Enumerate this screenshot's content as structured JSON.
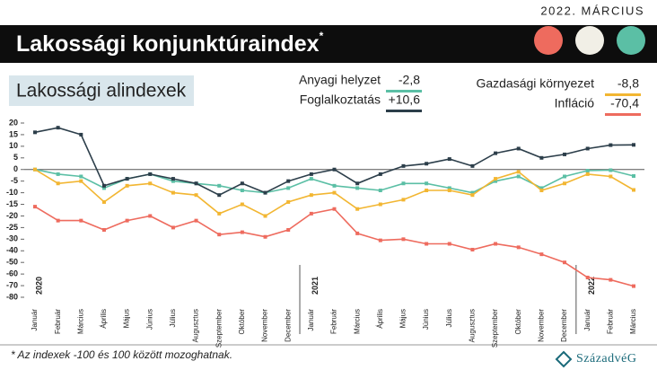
{
  "header": {
    "date": "2022. MÁRCIUS",
    "title": "Lakossági konjunktúraindex",
    "title_mark": "*"
  },
  "chart_data": {
    "type": "line",
    "subtitle": "Lakossági alindexek",
    "categories": [
      "Január",
      "Február",
      "Március",
      "Április",
      "Május",
      "Június",
      "Július",
      "Augusztus",
      "Szeptember",
      "Október",
      "November",
      "December",
      "Január",
      "Február",
      "Március",
      "Április",
      "Május",
      "Június",
      "Július",
      "Augusztus",
      "Szeptember",
      "Október",
      "November",
      "December",
      "Január",
      "Február",
      "Március"
    ],
    "years": [
      "2020",
      "2021",
      "2022"
    ],
    "ylim": [
      -80,
      20
    ],
    "yticks": [
      20,
      15,
      10,
      5,
      0,
      -5,
      -10,
      -15,
      -20,
      -25,
      -30,
      -40,
      -50,
      -60,
      -70,
      -80
    ],
    "series": [
      {
        "name": "Anyagi helyzet",
        "color": "#5bbfa5",
        "values": [
          0,
          -2,
          -3,
          -8,
          -4,
          -2,
          -5,
          -6,
          -7,
          -9,
          -10,
          -8,
          -4,
          -7,
          -8,
          -9,
          -6,
          -6,
          -8,
          -10,
          -5,
          -3,
          -8,
          -3,
          -0.5,
          -0.3,
          -2.8
        ],
        "value_labels": [
          null,
          null,
          null,
          null,
          null,
          null,
          null,
          null,
          null,
          null,
          null,
          null,
          null,
          null,
          null,
          null,
          null,
          null,
          null,
          null,
          null,
          null,
          null,
          null,
          null,
          null,
          "-2,8"
        ]
      },
      {
        "name": "Foglalkoztatás",
        "color": "#2c3e4a",
        "values": [
          16,
          18,
          15,
          -7,
          -4,
          -2,
          -4,
          -6,
          -11,
          -6,
          -10,
          -5,
          -2,
          0,
          -6,
          -2,
          1.5,
          2.5,
          4.5,
          1.5,
          7,
          9,
          5,
          6.5,
          9,
          10.5,
          10.6
        ],
        "value_labels": [
          null,
          null,
          null,
          null,
          null,
          null,
          null,
          null,
          null,
          null,
          null,
          null,
          null,
          null,
          null,
          null,
          null,
          null,
          null,
          null,
          null,
          null,
          null,
          null,
          null,
          null,
          "+10,6"
        ]
      },
      {
        "name": "Gazdasági környezet",
        "color": "#f2b632",
        "values": [
          0,
          -6,
          -5,
          -14,
          -7,
          -6,
          -10,
          -11,
          -19,
          -15,
          -20,
          -14,
          -11,
          -10,
          -17,
          -15,
          -13,
          -9,
          -9,
          -11,
          -4,
          -1,
          -9,
          -6,
          -2,
          -3,
          -8.8
        ],
        "value_labels": [
          null,
          null,
          null,
          null,
          null,
          null,
          null,
          null,
          null,
          null,
          null,
          null,
          null,
          null,
          null,
          null,
          null,
          null,
          null,
          null,
          null,
          null,
          null,
          null,
          null,
          null,
          "-8,8"
        ]
      },
      {
        "name": "Infláció",
        "color": "#ee6b5e",
        "values": [
          -16,
          -22,
          -22,
          -26,
          -22,
          -20,
          -25,
          -22,
          -28,
          -27,
          -29,
          -26,
          -19,
          -17,
          -27.5,
          -31,
          -30,
          -34,
          -34,
          -39,
          -34,
          -37,
          -43,
          -50,
          -63,
          -65,
          -70.4
        ],
        "value_labels": [
          null,
          null,
          null,
          null,
          null,
          null,
          null,
          null,
          null,
          null,
          null,
          null,
          null,
          null,
          null,
          null,
          null,
          null,
          null,
          null,
          null,
          null,
          null,
          null,
          null,
          null,
          "-70,4"
        ]
      }
    ]
  },
  "footer": {
    "note": "* Az indexek -100 és 100 között mozoghatnak.",
    "logo": "SzázadvéG"
  }
}
